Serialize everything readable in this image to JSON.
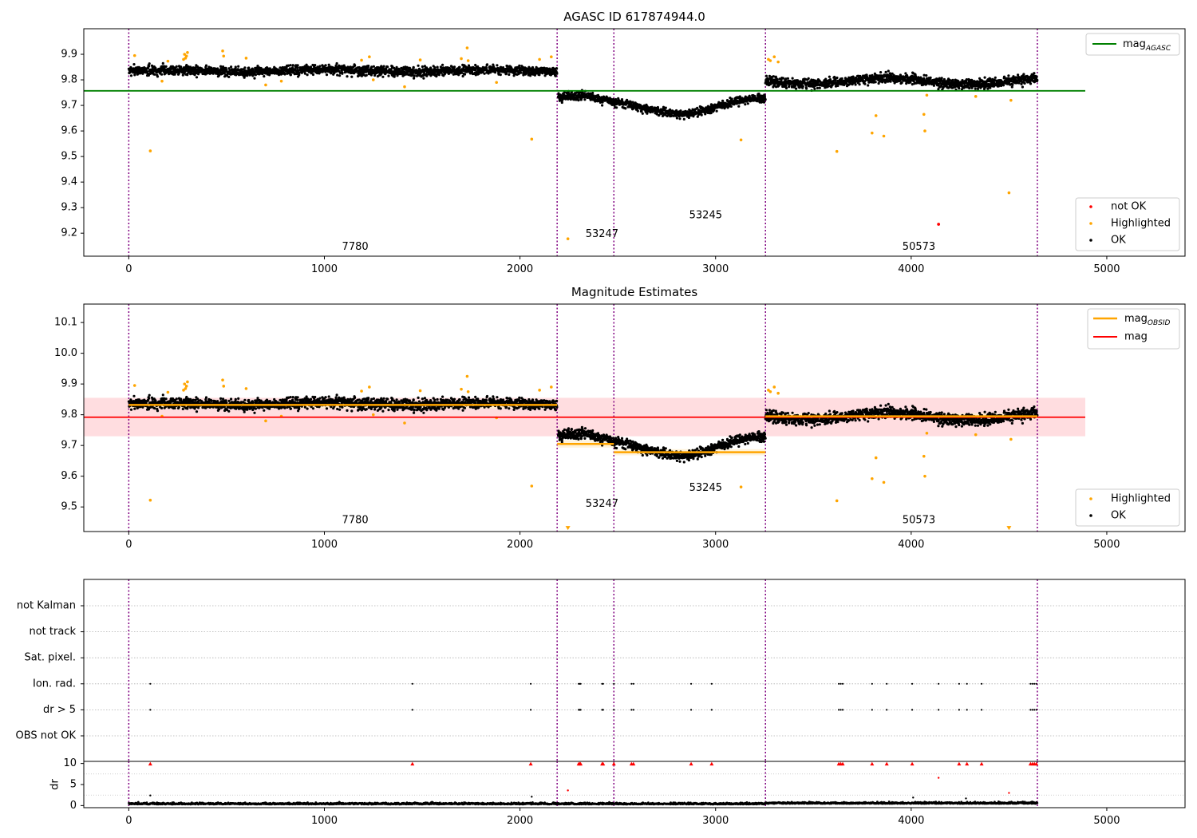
{
  "colors": {
    "ok": "#000000",
    "highlighted": "#ffa500",
    "not_ok": "#ff0000",
    "agasc_line": "#008000",
    "mag_line": "#ff0000",
    "mag_band": "#ffdde0",
    "obsid_line": "#ffa500",
    "obsid_band": "#fff0d2",
    "obs_boundary": "#800080",
    "grid": "#b0b0b0"
  },
  "chart_data": [
    {
      "type": "scatter",
      "title": "AGASC ID 617874944.0",
      "xlim": [
        -230,
        5400
      ],
      "ylim": [
        9.11,
        10.0
      ],
      "xticks": [
        0,
        1000,
        2000,
        3000,
        4000,
        5000
      ],
      "yticks": [
        9.2,
        9.3,
        9.4,
        9.5,
        9.6,
        9.7,
        9.8,
        9.9
      ],
      "obs_boundaries": [
        0,
        2190,
        2480,
        3255,
        4645
      ],
      "obs_labels": [
        {
          "text": "7780",
          "x": 1090,
          "y": 9.135
        },
        {
          "text": "53247",
          "x": 2335,
          "y": 9.185
        },
        {
          "text": "53245",
          "x": 2865,
          "y": 9.258
        },
        {
          "text": "50573",
          "x": 3955,
          "y": 9.135
        }
      ],
      "segments": [
        {
          "x0": 0,
          "x1": 2190,
          "base": 9.835,
          "amp": 0.004,
          "noise": 0.013
        },
        {
          "x0": 2195,
          "x1": 2480,
          "base": 9.705,
          "amp": 0.028,
          "noise": 0.012
        },
        {
          "x0": 2480,
          "x1": 3255,
          "base": 9.685,
          "amp": 0.03,
          "noise": 0.011
        },
        {
          "x0": 3255,
          "x1": 4645,
          "base": 9.795,
          "amp": 0.012,
          "noise": 0.014
        }
      ],
      "hlines": [
        {
          "name": "mag_AGASC",
          "y": 9.757,
          "x0": -230,
          "x1": 4890,
          "color": "#008000"
        }
      ],
      "highlighted": [
        [
          110,
          9.522
        ],
        [
          30,
          9.895
        ],
        [
          170,
          9.795
        ],
        [
          200,
          9.873
        ],
        [
          280,
          9.88
        ],
        [
          285,
          9.9
        ],
        [
          290,
          9.885
        ],
        [
          295,
          9.893
        ],
        [
          300,
          9.907
        ],
        [
          480,
          9.913
        ],
        [
          485,
          9.893
        ],
        [
          600,
          9.885
        ],
        [
          700,
          9.78
        ],
        [
          780,
          9.795
        ],
        [
          1190,
          9.877
        ],
        [
          1230,
          9.89
        ],
        [
          1250,
          9.8
        ],
        [
          1410,
          9.773
        ],
        [
          1490,
          9.878
        ],
        [
          1700,
          9.883
        ],
        [
          1730,
          9.925
        ],
        [
          1735,
          9.875
        ],
        [
          1880,
          9.79
        ],
        [
          2060,
          9.568
        ],
        [
          2100,
          9.88
        ],
        [
          2160,
          9.89
        ],
        [
          2245,
          9.178
        ],
        [
          3130,
          9.565
        ],
        [
          3270,
          9.88
        ],
        [
          3280,
          9.875
        ],
        [
          3300,
          9.89
        ],
        [
          3320,
          9.87
        ],
        [
          3620,
          9.52
        ],
        [
          3800,
          9.592
        ],
        [
          3820,
          9.66
        ],
        [
          3860,
          9.58
        ],
        [
          4070,
          9.6
        ],
        [
          4065,
          9.665
        ],
        [
          4080,
          9.74
        ],
        [
          4330,
          9.735
        ],
        [
          4500,
          9.358
        ],
        [
          4510,
          9.72
        ]
      ],
      "not_ok": [
        [
          4140,
          9.235
        ]
      ],
      "legend_top": [
        "mag_AGASC"
      ],
      "legend_bottom": [
        "not OK",
        "Highlighted",
        "OK"
      ]
    },
    {
      "type": "scatter",
      "title": "Magnitude Estimates",
      "xlim": [
        -230,
        5400
      ],
      "ylim": [
        9.42,
        10.16
      ],
      "xticks": [
        0,
        1000,
        2000,
        3000,
        4000,
        5000
      ],
      "yticks": [
        9.5,
        9.6,
        9.7,
        9.8,
        9.9,
        10.0,
        10.1
      ],
      "obs_boundaries": [
        0,
        2190,
        2480,
        3255,
        4645
      ],
      "obs_labels": [
        {
          "text": "7780",
          "x": 1090,
          "y": 9.447
        },
        {
          "text": "53247",
          "x": 2335,
          "y": 9.5
        },
        {
          "text": "53245",
          "x": 2865,
          "y": 9.553
        },
        {
          "text": "50573",
          "x": 3955,
          "y": 9.447
        }
      ],
      "segments": [
        {
          "x0": 0,
          "x1": 2190,
          "base": 9.835,
          "amp": 0.004,
          "noise": 0.013
        },
        {
          "x0": 2195,
          "x1": 2480,
          "base": 9.705,
          "amp": 0.028,
          "noise": 0.012
        },
        {
          "x0": 2480,
          "x1": 3255,
          "base": 9.685,
          "amp": 0.03,
          "noise": 0.011
        },
        {
          "x0": 3255,
          "x1": 4645,
          "base": 9.795,
          "amp": 0.012,
          "noise": 0.014
        }
      ],
      "mag": {
        "y": 9.792,
        "band": [
          9.73,
          9.855
        ],
        "x0": -230,
        "x1": 4890
      },
      "mag_obsid": [
        {
          "x0": 0,
          "x1": 2190,
          "y": 9.832,
          "band": [
            9.82,
            9.845
          ]
        },
        {
          "x0": 2190,
          "x1": 2480,
          "y": 9.705,
          "band": [
            9.693,
            9.717
          ]
        },
        {
          "x0": 2480,
          "x1": 3255,
          "y": 9.678,
          "band": [
            9.668,
            9.688
          ]
        },
        {
          "x0": 3255,
          "x1": 4645,
          "y": 9.795,
          "band": [
            9.785,
            9.805
          ]
        }
      ],
      "highlighted": [
        [
          110,
          9.522
        ],
        [
          30,
          9.895
        ],
        [
          170,
          9.795
        ],
        [
          200,
          9.873
        ],
        [
          280,
          9.88
        ],
        [
          285,
          9.9
        ],
        [
          290,
          9.885
        ],
        [
          295,
          9.893
        ],
        [
          300,
          9.907
        ],
        [
          480,
          9.913
        ],
        [
          485,
          9.893
        ],
        [
          600,
          9.885
        ],
        [
          700,
          9.78
        ],
        [
          780,
          9.795
        ],
        [
          1190,
          9.877
        ],
        [
          1230,
          9.89
        ],
        [
          1250,
          9.8
        ],
        [
          1410,
          9.773
        ],
        [
          1490,
          9.878
        ],
        [
          1700,
          9.883
        ],
        [
          1730,
          9.925
        ],
        [
          1735,
          9.875
        ],
        [
          1880,
          9.79
        ],
        [
          2060,
          9.568
        ],
        [
          2100,
          9.88
        ],
        [
          2160,
          9.89
        ],
        [
          3130,
          9.565
        ],
        [
          3270,
          9.88
        ],
        [
          3280,
          9.875
        ],
        [
          3300,
          9.89
        ],
        [
          3320,
          9.87
        ],
        [
          3620,
          9.52
        ],
        [
          3800,
          9.592
        ],
        [
          3820,
          9.66
        ],
        [
          3860,
          9.58
        ],
        [
          4070,
          9.6
        ],
        [
          4065,
          9.665
        ],
        [
          4080,
          9.74
        ],
        [
          4330,
          9.735
        ],
        [
          4510,
          9.72
        ]
      ],
      "offscale_markers": [
        [
          2245,
          9.43
        ],
        [
          4500,
          9.43
        ]
      ],
      "legend_top": [
        "mag_OBSID",
        "mag"
      ],
      "legend_bottom": [
        "Highlighted",
        "OK"
      ]
    },
    {
      "type": "scatter",
      "title": "",
      "xlim": [
        -230,
        5400
      ],
      "xticks": [
        0,
        1000,
        2000,
        3000,
        4000,
        5000
      ],
      "obs_boundaries": [
        0,
        2190,
        2480,
        3255,
        4645
      ],
      "flag_labels": [
        "not Kalman",
        "not track",
        "Sat. pixel.",
        "Ion. rad.",
        "dr > 5",
        "OBS not OK"
      ],
      "flag_points": {
        "Ion. rad.": [
          110,
          1450,
          2055,
          2300,
          2305,
          2310,
          2420,
          2425,
          2480,
          2570,
          2580,
          2875,
          2980,
          3630,
          3640,
          3650,
          3800,
          3875,
          4005,
          4140,
          4245,
          4285,
          4360,
          4610,
          4620,
          4630,
          4640
        ],
        "dr > 5": [
          110,
          1450,
          2055,
          2300,
          2305,
          2310,
          2420,
          2425,
          2480,
          2570,
          2580,
          2875,
          2980,
          3630,
          3640,
          3650,
          3800,
          3875,
          4005,
          4140,
          4245,
          4285,
          4360,
          4610,
          4620,
          4630,
          4640
        ]
      },
      "dr": {
        "ylabel": "dr",
        "ylim": [
          -0.5,
          10.5
        ],
        "yticks": [
          0,
          5,
          10
        ],
        "clip_markers": [
          110,
          1450,
          2055,
          2300,
          2305,
          2310,
          2420,
          2425,
          2480,
          2570,
          2580,
          2875,
          2980,
          3630,
          3640,
          3650,
          3800,
          3875,
          4005,
          4245,
          4285,
          4360,
          4610,
          4620,
          4630,
          4640
        ],
        "outliers_ok": [
          [
            110,
            2.4
          ],
          [
            2060,
            2.1
          ],
          [
            4010,
            1.9
          ],
          [
            4280,
            1.7
          ]
        ],
        "outliers_notok": [
          [
            2245,
            3.6
          ],
          [
            4140,
            6.6
          ],
          [
            4500,
            3.0
          ]
        ],
        "base": 0.3,
        "noise": 0.25
      }
    }
  ]
}
